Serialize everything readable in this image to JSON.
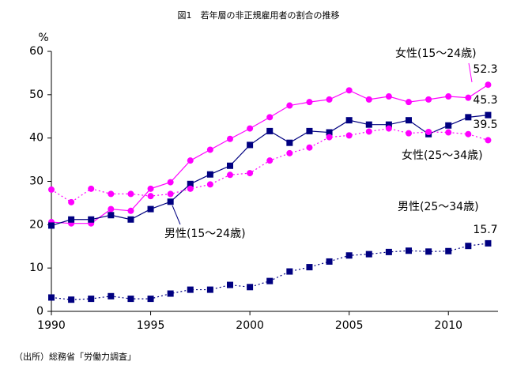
{
  "chart_data": {
    "type": "line",
    "title": "図1　若年層の非正規雇用者の割合の推移",
    "y_unit": "%",
    "source": "（出所）総務省「労働力調査」",
    "x": [
      1990,
      1991,
      1992,
      1993,
      1994,
      1995,
      1996,
      1997,
      1998,
      1999,
      2000,
      2001,
      2002,
      2003,
      2004,
      2005,
      2006,
      2007,
      2008,
      2009,
      2010,
      2011,
      2012
    ],
    "xlim": [
      1990,
      2012.5
    ],
    "xticks": [
      1990,
      1995,
      2000,
      2005,
      2010
    ],
    "ylim": [
      0,
      60
    ],
    "yticks": [
      0,
      10,
      20,
      30,
      40,
      50,
      60
    ],
    "grid": false,
    "series": [
      {
        "name": "女性(15～24歳)",
        "color": "#ff00ff",
        "marker": "circle",
        "dashed": false,
        "values": [
          20.6,
          20.3,
          20.3,
          23.6,
          23.2,
          28.3,
          29.8,
          34.8,
          37.3,
          39.8,
          42.2,
          44.8,
          47.5,
          48.3,
          48.9,
          51.0,
          48.9,
          49.6,
          48.3,
          48.9,
          49.6,
          49.3,
          52.3
        ]
      },
      {
        "name": "男性(15～24歳)",
        "color": "#000080",
        "marker": "square",
        "dashed": false,
        "values": [
          19.8,
          21.2,
          21.2,
          22.2,
          21.2,
          23.6,
          25.3,
          29.4,
          31.6,
          33.6,
          38.4,
          41.6,
          38.9,
          41.6,
          41.3,
          44.1,
          43.1,
          43.1,
          44.1,
          40.9,
          42.9,
          44.8,
          45.3
        ]
      },
      {
        "name": "女性(25～34歳)",
        "color": "#ff00ff",
        "marker": "circle",
        "dashed": true,
        "values": [
          28.1,
          25.2,
          28.3,
          27.1,
          27.1,
          26.6,
          27.1,
          28.3,
          29.3,
          31.5,
          31.9,
          34.8,
          36.5,
          37.8,
          40.2,
          40.6,
          41.5,
          42.2,
          41.1,
          41.4,
          41.3,
          40.9,
          39.5
        ]
      },
      {
        "name": "男性(25～34歳)",
        "color": "#000080",
        "marker": "square",
        "dashed": true,
        "values": [
          3.2,
          2.7,
          2.9,
          3.5,
          2.9,
          2.9,
          4.1,
          5.0,
          5.0,
          6.1,
          5.6,
          7.0,
          9.2,
          10.2,
          11.5,
          12.9,
          13.2,
          13.7,
          14.0,
          13.8,
          13.9,
          15.1,
          15.7
        ]
      }
    ]
  }
}
